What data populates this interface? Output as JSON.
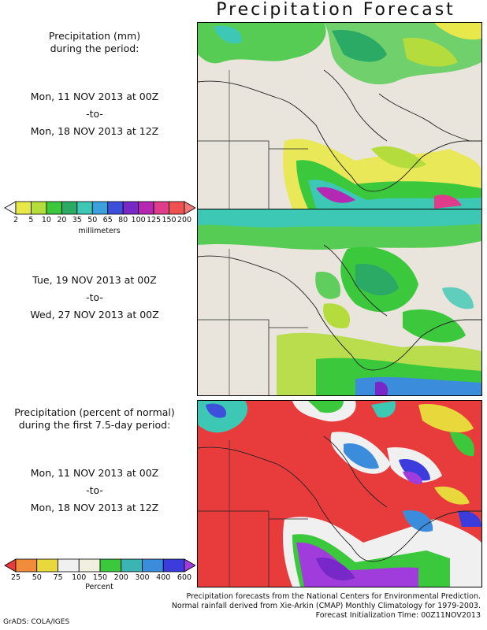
{
  "title": "Precipitation Forecast",
  "panel1": {
    "heading1": "Precipitation (mm)",
    "heading2": "during the period:",
    "from": "Mon, 11 NOV 2013 at 00Z",
    "sep": "-to-",
    "to": "Mon, 18 NOV 2013 at 12Z"
  },
  "panel2": {
    "from": "Tue, 19 NOV 2013 at 00Z",
    "sep": "-to-",
    "to": "Wed, 27 NOV 2013 at 00Z"
  },
  "panel3": {
    "heading1": "Precipitation (percent of normal)",
    "heading2": "during the first 7.5-day period:",
    "from": "Mon, 11 NOV 2013 at 00Z",
    "sep": "-to-",
    "to": "Mon, 18 NOV 2013 at 12Z"
  },
  "colorbar_mm": {
    "unit": "millimeters",
    "ticks": [
      "2",
      "5",
      "10",
      "20",
      "35",
      "50",
      "65",
      "80",
      "100",
      "125",
      "150",
      "200"
    ],
    "colors": [
      "#f5f5f5",
      "#e8e84a",
      "#b4dc3c",
      "#3cc83c",
      "#2aaa64",
      "#3cc8b4",
      "#3ca0dc",
      "#3c50dc",
      "#7828c8",
      "#b428b4",
      "#e03c8c",
      "#f05050",
      "#f07878"
    ]
  },
  "colorbar_pct": {
    "unit": "Percent",
    "ticks": [
      "25",
      "50",
      "75",
      "100",
      "150",
      "200",
      "300",
      "400",
      "600"
    ],
    "colors": [
      "#e83c3c",
      "#f08c3c",
      "#e8d83c",
      "#f0f0f0",
      "#f0f0e0",
      "#3cc83c",
      "#3cb4b4",
      "#3c8cdc",
      "#3c3cdc",
      "#a03cdc"
    ]
  },
  "footer": {
    "line1": "Precipitation forecasts from the National Centers for Environmental Prediction.",
    "line2": "Normal rainfall derived from Xie-Arkin (CMAP) Monthly Climatology for 1979-2003.",
    "line3": "Forecast Initialization Time: 00Z11NOV2013",
    "credit": "GrADS: COLA/IGES"
  }
}
